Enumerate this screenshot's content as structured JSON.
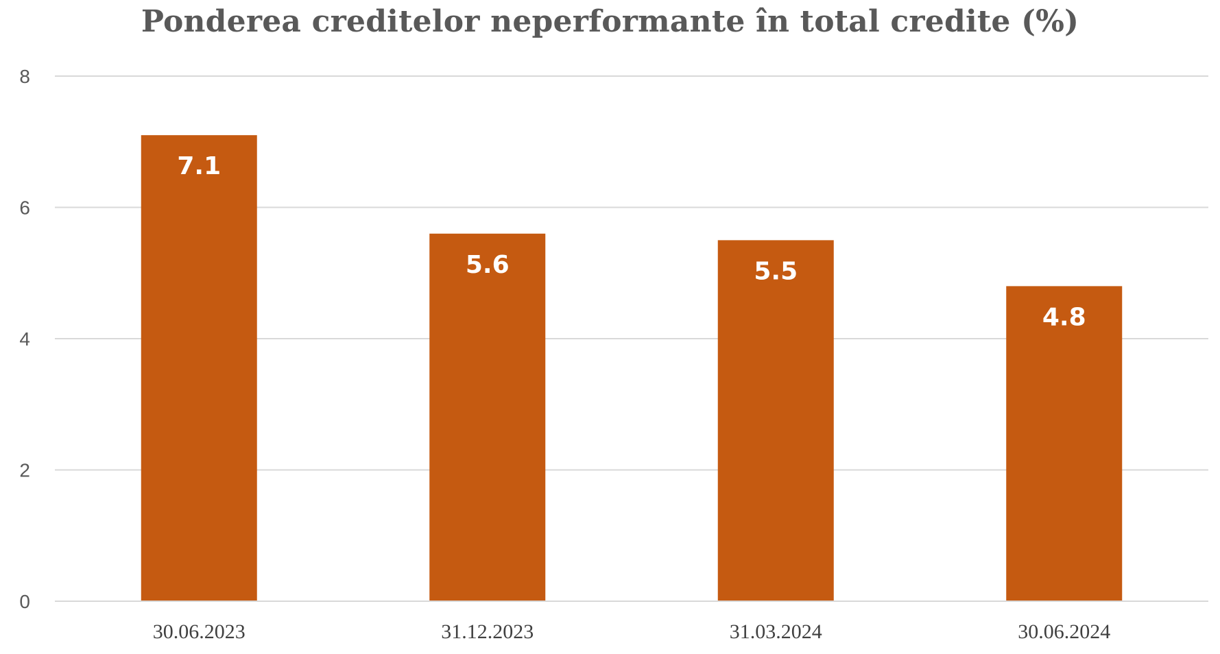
{
  "chart_data": {
    "type": "bar",
    "title": "Ponderea creditelor neperformante în total credite (%)",
    "categories": [
      "30.06.2023",
      "31.12.2023",
      "31.03.2024",
      "30.06.2024"
    ],
    "values": [
      7.1,
      5.6,
      5.5,
      4.8
    ],
    "data_labels": [
      "7.1",
      "5.6",
      "5.5",
      "4.8"
    ],
    "y_ticks": [
      "0",
      "2",
      "4",
      "6",
      "8"
    ],
    "ylim": [
      0,
      8
    ],
    "grid": true,
    "colors": {
      "bar": "#C55A11",
      "grid": "#D9D9D9",
      "text": "#595959"
    }
  }
}
